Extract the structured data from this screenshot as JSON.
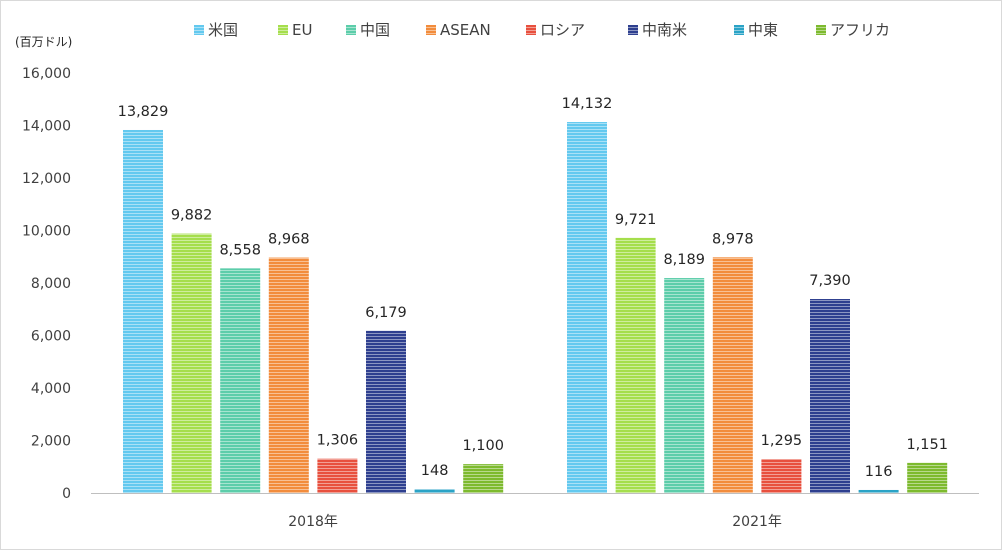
{
  "chart_data": {
    "type": "bar",
    "unit_label": "(百万ドル)",
    "categories": [
      "2018年",
      "2021年"
    ],
    "series": [
      {
        "name": "米国",
        "color": "#63c9ef",
        "values": [
          13829,
          14132
        ]
      },
      {
        "name": "EU",
        "color": "#a5de4c",
        "values": [
          9882,
          9721
        ]
      },
      {
        "name": "中国",
        "color": "#5ccdaa",
        "values": [
          8558,
          8189
        ]
      },
      {
        "name": "ASEAN",
        "color": "#f28c3c",
        "values": [
          8968,
          8978
        ]
      },
      {
        "name": "ロシア",
        "color": "#e8503e",
        "values": [
          1306,
          1295
        ]
      },
      {
        "name": "中南米",
        "color": "#2e3f8f",
        "values": [
          6179,
          7390
        ]
      },
      {
        "name": "中東",
        "color": "#2aa3c6",
        "values": [
          148,
          116
        ]
      },
      {
        "name": "アフリカ",
        "color": "#7dba2e",
        "values": [
          1100,
          1151
        ]
      }
    ],
    "data_labels": [
      [
        "13,829",
        "14,132"
      ],
      [
        "9,882",
        "9,721"
      ],
      [
        "8,558",
        "8,189"
      ],
      [
        "8,968",
        "8,978"
      ],
      [
        "1,306",
        "1,295"
      ],
      [
        "6,179",
        "7,390"
      ],
      [
        "148",
        "116"
      ],
      [
        "1,100",
        "1,151"
      ]
    ],
    "ylim": [
      0,
      16000
    ],
    "yticks": [
      0,
      2000,
      4000,
      6000,
      8000,
      10000,
      12000,
      14000,
      16000
    ],
    "ytick_labels": [
      "0",
      "2,000",
      "4,000",
      "6,000",
      "8,000",
      "10,000",
      "12,000",
      "14,000",
      "16,000"
    ],
    "grid": false,
    "legend_position": "top"
  }
}
